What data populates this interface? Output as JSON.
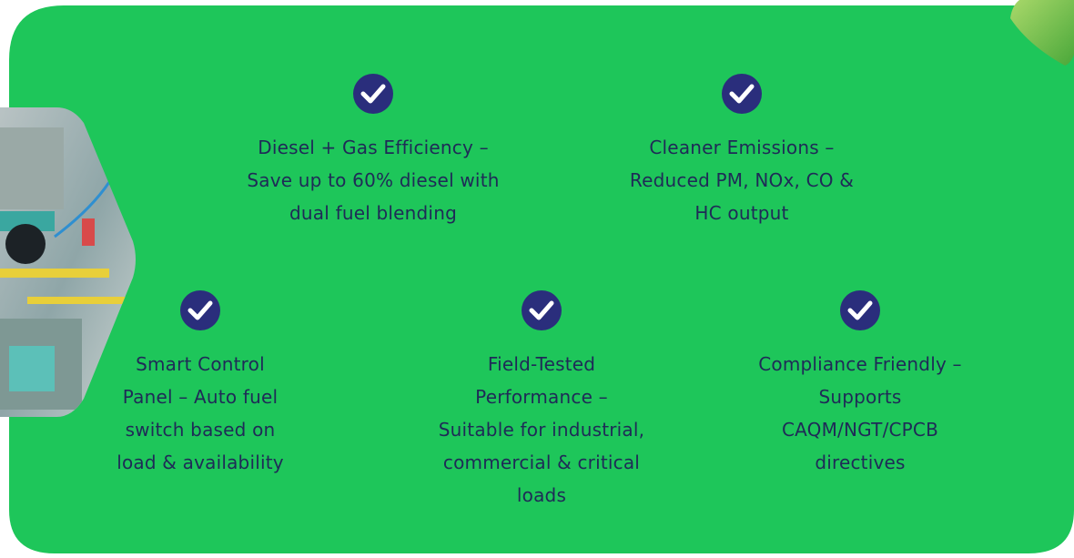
{
  "features": [
    {
      "lines": [
        "Diesel + Gas Efficiency –",
        "Save up to 60% diesel with",
        "dual fuel blending"
      ]
    },
    {
      "lines": [
        "Cleaner Emissions –",
        "Reduced PM, NOx, CO &",
        "HC output"
      ]
    },
    {
      "lines": [
        "Smart Control",
        "Panel – Auto fuel",
        "switch based on",
        "load & availability"
      ]
    },
    {
      "lines": [
        "Field-Tested",
        "Performance –",
        "Suitable for industrial,",
        "commercial & critical",
        "loads"
      ]
    },
    {
      "lines": [
        "Compliance Friendly –",
        "Supports",
        "CAQM/NGT/CPCB",
        "directives"
      ]
    }
  ]
}
